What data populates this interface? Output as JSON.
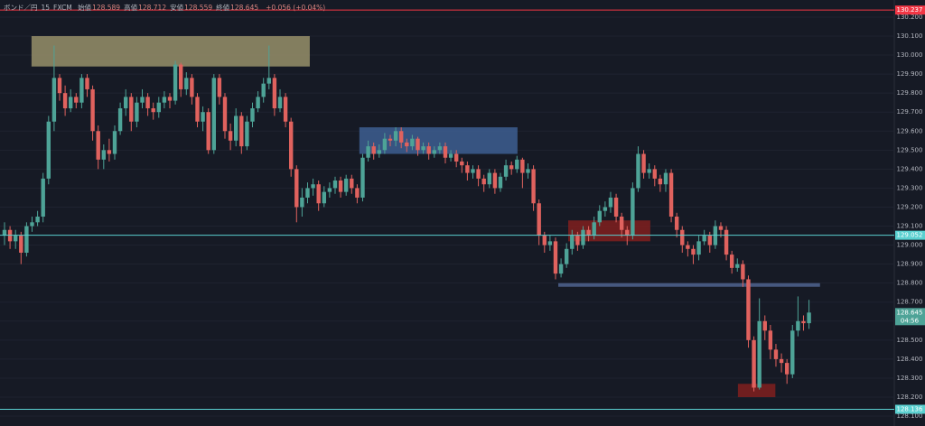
{
  "chart_data": {
    "type": "candlestick",
    "header": {
      "symbol": "ボンド／円",
      "interval": "15",
      "source": "FXCM",
      "legend": [
        {
          "label": "始値",
          "value": 128.589
        },
        {
          "label": "高値",
          "value": 128.712
        },
        {
          "label": "安値",
          "value": 128.559
        },
        {
          "label": "終値",
          "value": 128.645
        }
      ],
      "change": "+0.056 (+0.04%)"
    },
    "up_color": "#4ea397",
    "down_color": "#e0625e",
    "open": [
      129.05,
      129.08,
      129.02,
      129.05,
      128.96,
      129.1,
      129.12,
      129.15,
      129.35,
      129.65,
      129.88,
      129.8,
      129.72,
      129.78,
      129.75,
      129.88,
      129.82,
      129.6,
      129.45,
      129.5,
      129.48,
      129.6,
      129.72,
      129.78,
      129.65,
      129.75,
      129.78,
      129.72,
      129.7,
      129.75,
      129.78,
      129.76,
      129.95,
      129.82,
      129.88,
      129.78,
      129.65,
      129.7,
      129.5,
      129.88,
      129.78,
      129.6,
      129.55,
      129.68,
      129.52,
      129.65,
      129.72,
      129.78,
      129.85,
      129.88,
      129.72,
      129.78,
      129.65,
      129.4,
      129.2,
      129.25,
      129.3,
      129.32,
      129.22,
      129.28,
      129.3,
      129.34,
      129.28,
      129.35,
      129.3,
      129.25,
      129.46,
      129.52,
      129.48,
      129.5,
      129.56,
      129.55,
      129.6,
      129.54,
      129.52,
      129.56,
      129.5,
      129.52,
      129.48,
      129.5,
      129.52,
      129.46,
      129.48,
      129.44,
      129.42,
      129.38,
      129.4,
      129.35,
      129.32,
      129.38,
      129.3,
      129.36,
      129.42,
      129.4,
      129.45,
      129.38,
      129.4,
      129.22,
      129.05,
      129.0,
      129.02,
      128.85,
      128.9,
      128.98,
      129.05,
      129.0,
      129.08,
      129.05,
      129.12,
      129.18,
      129.2,
      129.25,
      129.15,
      129.08,
      129.05,
      129.3,
      129.48,
      129.38,
      129.4,
      129.35,
      129.32,
      129.38,
      129.15,
      129.08,
      129.0,
      128.98,
      128.95,
      129.02,
      129.05,
      129.0,
      129.1,
      129.08,
      128.95,
      128.88,
      128.9,
      128.82,
      128.5,
      128.25,
      128.6,
      128.55,
      128.45,
      128.4,
      128.38,
      128.32,
      128.55,
      128.6,
      128.589
    ],
    "high": [
      129.12,
      129.1,
      129.08,
      129.07,
      129.12,
      129.15,
      129.18,
      129.38,
      129.68,
      130.05,
      129.9,
      129.84,
      129.82,
      129.8,
      129.9,
      129.9,
      129.84,
      129.63,
      129.53,
      129.56,
      129.63,
      129.75,
      129.82,
      129.8,
      129.78,
      129.82,
      129.8,
      129.75,
      129.78,
      129.81,
      129.8,
      129.97,
      129.96,
      129.91,
      129.9,
      129.8,
      129.73,
      129.72,
      129.9,
      129.9,
      129.8,
      129.64,
      129.72,
      129.7,
      129.68,
      129.75,
      129.81,
      129.88,
      130.05,
      129.9,
      129.82,
      129.8,
      129.67,
      129.42,
      129.3,
      129.33,
      129.35,
      129.34,
      129.31,
      129.33,
      129.36,
      129.36,
      129.37,
      129.37,
      129.32,
      129.48,
      129.55,
      129.54,
      129.53,
      129.59,
      129.58,
      129.62,
      129.62,
      129.56,
      129.58,
      129.57,
      129.54,
      129.54,
      129.52,
      129.54,
      129.54,
      129.5,
      129.5,
      129.46,
      129.44,
      129.42,
      129.42,
      129.37,
      129.4,
      129.4,
      129.38,
      129.45,
      129.44,
      129.47,
      129.46,
      129.43,
      129.42,
      129.24,
      129.07,
      129.05,
      129.04,
      128.93,
      129.01,
      129.08,
      129.07,
      129.1,
      129.1,
      129.15,
      129.21,
      129.23,
      129.28,
      129.27,
      129.17,
      129.1,
      129.33,
      129.52,
      129.5,
      129.43,
      129.42,
      129.37,
      129.4,
      129.4,
      129.17,
      129.1,
      129.02,
      129.0,
      129.05,
      129.08,
      129.07,
      129.13,
      129.12,
      129.1,
      128.97,
      128.93,
      128.92,
      128.84,
      128.52,
      128.72,
      128.63,
      128.58,
      128.48,
      128.43,
      128.4,
      128.58,
      128.73,
      128.63,
      128.712
    ],
    "low": [
      129.0,
      128.98,
      128.98,
      128.9,
      128.94,
      129.07,
      129.1,
      129.12,
      129.32,
      129.6,
      129.76,
      129.68,
      129.7,
      129.72,
      129.72,
      129.78,
      129.55,
      129.4,
      129.4,
      129.44,
      129.45,
      129.58,
      129.68,
      129.6,
      129.62,
      129.72,
      129.68,
      129.66,
      129.67,
      129.72,
      129.72,
      129.74,
      129.78,
      129.79,
      129.74,
      129.62,
      129.6,
      129.48,
      129.48,
      129.74,
      129.56,
      129.5,
      129.52,
      129.48,
      129.5,
      129.62,
      129.7,
      129.75,
      129.82,
      129.68,
      129.7,
      129.62,
      129.36,
      129.12,
      129.15,
      129.22,
      129.26,
      129.18,
      129.2,
      129.25,
      129.27,
      129.25,
      129.26,
      129.27,
      129.22,
      129.23,
      129.44,
      129.45,
      129.46,
      129.48,
      129.52,
      129.52,
      129.51,
      129.49,
      129.5,
      129.47,
      129.48,
      129.45,
      129.46,
      129.48,
      129.43,
      129.44,
      129.41,
      129.38,
      129.34,
      129.35,
      129.31,
      129.28,
      129.3,
      129.27,
      129.28,
      129.34,
      129.37,
      129.38,
      129.3,
      129.35,
      129.18,
      129.0,
      128.96,
      128.97,
      128.82,
      128.83,
      128.88,
      128.95,
      128.97,
      128.98,
      129.02,
      129.03,
      129.1,
      129.15,
      129.17,
      129.12,
      129.04,
      129.0,
      129.03,
      129.28,
      129.35,
      129.35,
      129.31,
      129.28,
      129.28,
      129.12,
      129.04,
      128.96,
      128.94,
      128.9,
      128.92,
      129.0,
      128.96,
      128.98,
      129.04,
      128.92,
      128.85,
      128.86,
      128.78,
      128.46,
      128.23,
      128.24,
      128.5,
      128.4,
      128.36,
      128.33,
      128.27,
      128.3,
      128.52,
      128.55,
      128.559
    ],
    "close": [
      129.08,
      129.02,
      129.05,
      128.96,
      129.1,
      129.12,
      129.15,
      129.35,
      129.65,
      129.88,
      129.8,
      129.72,
      129.78,
      129.75,
      129.88,
      129.82,
      129.6,
      129.45,
      129.5,
      129.48,
      129.6,
      129.72,
      129.78,
      129.65,
      129.75,
      129.78,
      129.72,
      129.7,
      129.75,
      129.78,
      129.76,
      129.95,
      129.82,
      129.88,
      129.78,
      129.65,
      129.7,
      129.5,
      129.88,
      129.78,
      129.6,
      129.55,
      129.68,
      129.52,
      129.65,
      129.72,
      129.78,
      129.85,
      129.88,
      129.72,
      129.78,
      129.65,
      129.4,
      129.2,
      129.25,
      129.3,
      129.32,
      129.22,
      129.28,
      129.3,
      129.34,
      129.28,
      129.35,
      129.3,
      129.25,
      129.46,
      129.52,
      129.48,
      129.5,
      129.56,
      129.55,
      129.6,
      129.54,
      129.52,
      129.56,
      129.5,
      129.52,
      129.48,
      129.5,
      129.52,
      129.46,
      129.48,
      129.44,
      129.42,
      129.38,
      129.4,
      129.35,
      129.32,
      129.38,
      129.3,
      129.36,
      129.42,
      129.4,
      129.45,
      129.38,
      129.4,
      129.22,
      129.05,
      129.0,
      129.02,
      128.85,
      128.9,
      128.98,
      129.05,
      129.0,
      129.08,
      129.05,
      129.12,
      129.18,
      129.2,
      129.25,
      129.15,
      129.08,
      129.05,
      129.3,
      129.48,
      129.38,
      129.4,
      129.35,
      129.32,
      129.38,
      129.15,
      129.08,
      129.0,
      128.98,
      128.95,
      129.02,
      129.05,
      129.0,
      129.1,
      129.08,
      128.95,
      128.88,
      128.9,
      128.82,
      128.5,
      128.25,
      128.6,
      128.55,
      128.45,
      128.4,
      128.38,
      128.32,
      128.55,
      128.6,
      128.589,
      128.645
    ],
    "xlim": [
      -0.82,
      161.48
    ],
    "ylim": [
      128.048,
      130.29
    ],
    "yticks": [
      {
        "value": 130.2,
        "label": "130.200"
      },
      {
        "value": 130.1,
        "label": "130.100"
      },
      {
        "value": 130.0,
        "label": "130.000"
      },
      {
        "value": 129.9,
        "label": "129.900"
      },
      {
        "value": 129.8,
        "label": "129.800"
      },
      {
        "value": 129.7,
        "label": "129.700"
      },
      {
        "value": 129.6,
        "label": "129.600"
      },
      {
        "value": 129.5,
        "label": "129.500"
      },
      {
        "value": 129.4,
        "label": "129.400"
      },
      {
        "value": 129.3,
        "label": "129.300"
      },
      {
        "value": 129.2,
        "label": "129.200"
      },
      {
        "value": 129.1,
        "label": "129.100"
      },
      {
        "value": 129.0,
        "label": "129.000"
      },
      {
        "value": 128.9,
        "label": "128.900"
      },
      {
        "value": 128.8,
        "label": "128.800"
      },
      {
        "value": 128.7,
        "label": "128.700"
      },
      {
        "value": 128.6,
        "label": "128.600"
      },
      {
        "value": 128.5,
        "label": "128.500"
      },
      {
        "value": 128.4,
        "label": "128.400"
      },
      {
        "value": 128.3,
        "label": "128.300"
      },
      {
        "value": 128.2,
        "label": "128.200"
      },
      {
        "value": 128.1,
        "label": "128.100"
      }
    ],
    "grid": true,
    "zones": [
      {
        "from": 4.9,
        "to": 55.4,
        "top": 130.1,
        "bottom": 129.94,
        "color": "#8f8a66"
      },
      {
        "from": 64.4,
        "to": 93.1,
        "top": 129.62,
        "bottom": 129.48,
        "color": "#3b5b8c"
      },
      {
        "from": 102.3,
        "to": 117.2,
        "top": 129.13,
        "bottom": 129.02,
        "color": "#7a1f1f"
      },
      {
        "from": 133.1,
        "to": 139.9,
        "top": 128.27,
        "bottom": 128.2,
        "color": "#7a1f1f"
      }
    ],
    "segments": [
      {
        "from": 100.5,
        "to": 148.0,
        "value": 128.79,
        "color": "#46587f"
      }
    ],
    "price_lines": [
      {
        "value": 130.237,
        "color": "#f23645"
      },
      {
        "value": 129.052,
        "color": "#5ad0d0"
      },
      {
        "value": 128.136,
        "color": "#5ad0d0"
      }
    ],
    "countdown": "04:56"
  }
}
